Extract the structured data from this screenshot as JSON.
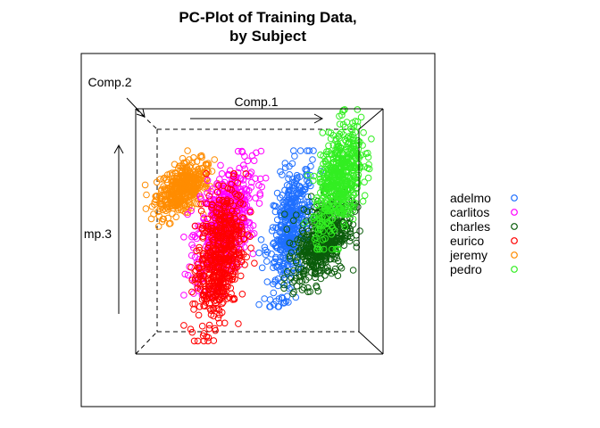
{
  "chart_data": {
    "type": "scatter",
    "title": "PC-Plot of Training Data,",
    "subtitle": "by Subject",
    "axes": {
      "x": "Comp.1",
      "y": "Comp.2",
      "z": "mp.3"
    },
    "legend_placement": "right",
    "grid": false,
    "series": [
      {
        "name": "adelmo",
        "color": "#1f6fff",
        "cloud": {
          "x": [
            0.55,
            0.75
          ],
          "y": [
            0.2,
            0.8
          ],
          "count": 420
        }
      },
      {
        "name": "carlitos",
        "color": "#ff00ff",
        "cloud": {
          "x": [
            0.22,
            0.5
          ],
          "y": [
            0.25,
            0.8
          ],
          "count": 520
        }
      },
      {
        "name": "charles",
        "color": "#0a5c0a",
        "cloud": {
          "x": [
            0.66,
            0.92
          ],
          "y": [
            0.25,
            0.65
          ],
          "count": 520
        }
      },
      {
        "name": "eurico",
        "color": "#ff0000",
        "cloud": {
          "x": [
            0.22,
            0.45
          ],
          "y": [
            0.05,
            0.7
          ],
          "count": 560
        }
      },
      {
        "name": "jeremy",
        "color": "#ff8c00",
        "cloud": {
          "x": [
            0.05,
            0.3
          ],
          "y": [
            0.55,
            0.8
          ],
          "count": 420
        }
      },
      {
        "name": "pedro",
        "color": "#33ee22",
        "cloud": {
          "x": [
            0.75,
            0.98
          ],
          "y": [
            0.45,
            0.98
          ],
          "count": 520
        }
      }
    ]
  }
}
